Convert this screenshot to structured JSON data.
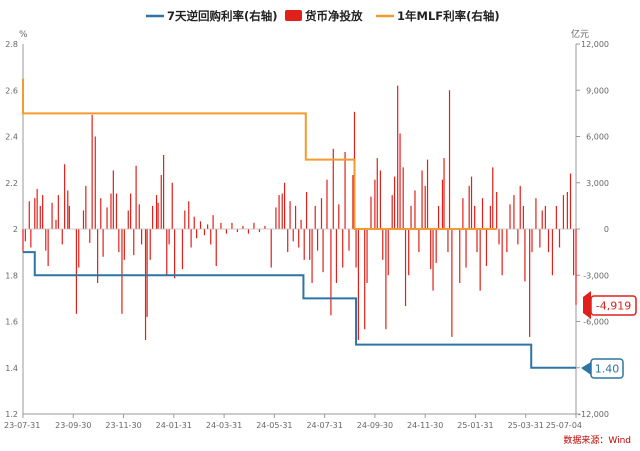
{
  "legend": [
    {
      "label": "7天逆回购利率(右轴)",
      "color": "#2e75a3",
      "shape": "line"
    },
    {
      "label": "货币净投放",
      "color": "#e0201b",
      "shape": "box"
    },
    {
      "label": "1年MLF利率(右轴)",
      "color": "#f29b2f",
      "shape": "line"
    }
  ],
  "source": "数据来源：Wind",
  "callouts": {
    "last_flow": "-4,919",
    "last_repo": "1.40"
  },
  "chart_data": {
    "type": "bar+line",
    "left_axis": {
      "unit": "%",
      "min": 1.2,
      "max": 2.8,
      "ticks": [
        "1.2",
        "1.4",
        "1.6",
        "1.8",
        "2",
        "2.2",
        "2.4",
        "2.6",
        "2.8"
      ]
    },
    "right_axis": {
      "unit": "亿元",
      "min": -12000,
      "max": 12000,
      "ticks": [
        "-12,000",
        "-9,000",
        "-6,000",
        "-3,000",
        "0",
        "3,000",
        "6,000",
        "9,000",
        "12,000"
      ]
    },
    "x_ticks": [
      "23-07-31",
      "23-09-30",
      "23-11-30",
      "24-01-31",
      "24-03-31",
      "24-05-31",
      "24-07-31",
      "24-09-30",
      "24-11-30",
      "25-01-31",
      "25-03-31",
      "25-07-04"
    ],
    "x_range": [
      "2023-07-31",
      "2025-07-04"
    ],
    "repo_rate": {
      "name": "7天逆回购利率(右轴)",
      "color": "#2e75a3",
      "steps": [
        {
          "date": "2023-07-31",
          "value": 1.9
        },
        {
          "date": "2023-08-15",
          "value": 1.8
        },
        {
          "date": "2024-07-22",
          "value": 1.7
        },
        {
          "date": "2024-09-27",
          "value": 1.5
        },
        {
          "date": "2025-05-08",
          "value": 1.4
        },
        {
          "date": "2025-07-04",
          "value": 1.4
        }
      ]
    },
    "mlf_rate": {
      "name": "1年MLF利率(右轴)",
      "color": "#f29b2f",
      "steps": [
        {
          "date": "2023-07-31",
          "value": 2.5
        },
        {
          "date": "2024-07-25",
          "value": 2.3
        },
        {
          "date": "2024-09-25",
          "value": 2.0
        },
        {
          "date": "2025-03-25",
          "value": 2.0
        }
      ]
    },
    "net_injection": {
      "name": "货币净投放",
      "color": "#e0201b",
      "unit": "亿元",
      "bars": [
        {
          "date": "2023-07-31",
          "value": -1500
        },
        {
          "date": "2023-08-03",
          "value": -800
        },
        {
          "date": "2023-08-08",
          "value": 1800
        },
        {
          "date": "2023-08-10",
          "value": -1200
        },
        {
          "date": "2023-08-15",
          "value": 2000
        },
        {
          "date": "2023-08-18",
          "value": 2600
        },
        {
          "date": "2023-08-22",
          "value": 1500
        },
        {
          "date": "2023-08-25",
          "value": 2200
        },
        {
          "date": "2023-08-29",
          "value": -1400
        },
        {
          "date": "2023-09-01",
          "value": -2400
        },
        {
          "date": "2023-09-06",
          "value": 1700
        },
        {
          "date": "2023-09-11",
          "value": 600
        },
        {
          "date": "2023-09-14",
          "value": 2200
        },
        {
          "date": "2023-09-19",
          "value": -1000
        },
        {
          "date": "2023-09-22",
          "value": 4200
        },
        {
          "date": "2023-09-26",
          "value": 2500
        },
        {
          "date": "2023-09-28",
          "value": 1500
        },
        {
          "date": "2023-10-07",
          "value": -5500
        },
        {
          "date": "2023-10-10",
          "value": -2500
        },
        {
          "date": "2023-10-16",
          "value": 1200
        },
        {
          "date": "2023-10-19",
          "value": 2800
        },
        {
          "date": "2023-10-24",
          "value": -900
        },
        {
          "date": "2023-10-27",
          "value": 7400
        },
        {
          "date": "2023-10-31",
          "value": 6000
        },
        {
          "date": "2023-11-03",
          "value": -3500
        },
        {
          "date": "2023-11-07",
          "value": 2000
        },
        {
          "date": "2023-11-10",
          "value": -1800
        },
        {
          "date": "2023-11-15",
          "value": 1400
        },
        {
          "date": "2023-11-20",
          "value": 2300
        },
        {
          "date": "2023-11-23",
          "value": 3800
        },
        {
          "date": "2023-11-27",
          "value": 2300
        },
        {
          "date": "2023-11-30",
          "value": -1500
        },
        {
          "date": "2023-12-04",
          "value": -5500
        },
        {
          "date": "2023-12-07",
          "value": -2000
        },
        {
          "date": "2023-12-12",
          "value": 1200
        },
        {
          "date": "2023-12-15",
          "value": 2300
        },
        {
          "date": "2023-12-19",
          "value": -1700
        },
        {
          "date": "2023-12-22",
          "value": 4100
        },
        {
          "date": "2023-12-26",
          "value": 1600
        },
        {
          "date": "2023-12-29",
          "value": -1000
        },
        {
          "date": "2024-01-03",
          "value": -7200
        },
        {
          "date": "2024-01-05",
          "value": -5700
        },
        {
          "date": "2024-01-09",
          "value": -2000
        },
        {
          "date": "2024-01-12",
          "value": 1500
        },
        {
          "date": "2024-01-17",
          "value": 2200
        },
        {
          "date": "2024-01-19",
          "value": 1700
        },
        {
          "date": "2024-01-23",
          "value": 3500
        },
        {
          "date": "2024-01-26",
          "value": 4800
        },
        {
          "date": "2024-01-30",
          "value": -3000
        },
        {
          "date": "2024-02-02",
          "value": -1000
        },
        {
          "date": "2024-02-06",
          "value": 3000
        },
        {
          "date": "2024-02-09",
          "value": -3200
        },
        {
          "date": "2024-02-19",
          "value": -2600
        },
        {
          "date": "2024-02-22",
          "value": 1200
        },
        {
          "date": "2024-02-27",
          "value": 1800
        },
        {
          "date": "2024-03-01",
          "value": -1200
        },
        {
          "date": "2024-03-05",
          "value": 800
        },
        {
          "date": "2024-03-08",
          "value": -600
        },
        {
          "date": "2024-03-13",
          "value": 500
        },
        {
          "date": "2024-03-18",
          "value": -400
        },
        {
          "date": "2024-03-22",
          "value": 300
        },
        {
          "date": "2024-03-26",
          "value": -1000
        },
        {
          "date": "2024-03-29",
          "value": 900
        },
        {
          "date": "2024-04-02",
          "value": -2400
        },
        {
          "date": "2024-04-08",
          "value": 400
        },
        {
          "date": "2024-04-15",
          "value": -300
        },
        {
          "date": "2024-04-22",
          "value": 400
        },
        {
          "date": "2024-04-29",
          "value": -200
        },
        {
          "date": "2024-05-06",
          "value": 200
        },
        {
          "date": "2024-05-13",
          "value": -300
        },
        {
          "date": "2024-05-20",
          "value": 400
        },
        {
          "date": "2024-05-27",
          "value": -200
        },
        {
          "date": "2024-06-03",
          "value": 200
        },
        {
          "date": "2024-06-11",
          "value": -2500
        },
        {
          "date": "2024-06-17",
          "value": 1400
        },
        {
          "date": "2024-06-21",
          "value": 2200
        },
        {
          "date": "2024-06-25",
          "value": 2300
        },
        {
          "date": "2024-06-28",
          "value": 3000
        },
        {
          "date": "2024-07-02",
          "value": -1500
        },
        {
          "date": "2024-07-05",
          "value": 1800
        },
        {
          "date": "2024-07-09",
          "value": -800
        },
        {
          "date": "2024-07-12",
          "value": 1500
        },
        {
          "date": "2024-07-16",
          "value": -1200
        },
        {
          "date": "2024-07-19",
          "value": 600
        },
        {
          "date": "2024-07-23",
          "value": -2000
        },
        {
          "date": "2024-07-26",
          "value": 2400
        },
        {
          "date": "2024-07-30",
          "value": -2000
        },
        {
          "date": "2024-08-02",
          "value": -3500
        },
        {
          "date": "2024-08-06",
          "value": 1500
        },
        {
          "date": "2024-08-09",
          "value": -1400
        },
        {
          "date": "2024-08-14",
          "value": 2000
        },
        {
          "date": "2024-08-16",
          "value": -2800
        },
        {
          "date": "2024-08-21",
          "value": 3200
        },
        {
          "date": "2024-08-26",
          "value": -5600
        },
        {
          "date": "2024-08-29",
          "value": 5200
        },
        {
          "date": "2024-09-02",
          "value": -3500
        },
        {
          "date": "2024-09-05",
          "value": 1600
        },
        {
          "date": "2024-09-10",
          "value": -2500
        },
        {
          "date": "2024-09-13",
          "value": 5000
        },
        {
          "date": "2024-09-18",
          "value": -1400
        },
        {
          "date": "2024-09-23",
          "value": 3500
        },
        {
          "date": "2024-09-25",
          "value": 7600
        },
        {
          "date": "2024-09-27",
          "value": -2500
        },
        {
          "date": "2024-09-30",
          "value": -7200
        },
        {
          "date": "2024-10-08",
          "value": -6500
        },
        {
          "date": "2024-10-11",
          "value": -3500
        },
        {
          "date": "2024-10-16",
          "value": 2100
        },
        {
          "date": "2024-10-21",
          "value": 3200
        },
        {
          "date": "2024-10-24",
          "value": 4600
        },
        {
          "date": "2024-10-28",
          "value": 3800
        },
        {
          "date": "2024-10-31",
          "value": -2000
        },
        {
          "date": "2024-11-04",
          "value": -6500
        },
        {
          "date": "2024-11-07",
          "value": -3000
        },
        {
          "date": "2024-11-12",
          "value": 2200
        },
        {
          "date": "2024-11-15",
          "value": 3400
        },
        {
          "date": "2024-11-19",
          "value": 9300
        },
        {
          "date": "2024-11-22",
          "value": 6200
        },
        {
          "date": "2024-11-26",
          "value": 4000
        },
        {
          "date": "2024-11-29",
          "value": -5000
        },
        {
          "date": "2024-12-03",
          "value": -3000
        },
        {
          "date": "2024-12-06",
          "value": 1500
        },
        {
          "date": "2024-12-11",
          "value": 2500
        },
        {
          "date": "2024-12-16",
          "value": -1500
        },
        {
          "date": "2024-12-20",
          "value": 3800
        },
        {
          "date": "2024-12-24",
          "value": 2800
        },
        {
          "date": "2024-12-27",
          "value": 4500
        },
        {
          "date": "2024-12-31",
          "value": -2600
        },
        {
          "date": "2025-01-03",
          "value": -4000
        },
        {
          "date": "2025-01-07",
          "value": -2200
        },
        {
          "date": "2025-01-10",
          "value": 1500
        },
        {
          "date": "2025-01-15",
          "value": 3200
        },
        {
          "date": "2025-01-17",
          "value": 4600
        },
        {
          "date": "2025-01-22",
          "value": -1500
        },
        {
          "date": "2025-01-24",
          "value": 9000
        },
        {
          "date": "2025-01-27",
          "value": -7000
        },
        {
          "date": "2025-02-06",
          "value": -3500
        },
        {
          "date": "2025-02-10",
          "value": 2000
        },
        {
          "date": "2025-02-14",
          "value": -2500
        },
        {
          "date": "2025-02-18",
          "value": 2800
        },
        {
          "date": "2025-02-21",
          "value": 3400
        },
        {
          "date": "2025-02-25",
          "value": 1500
        },
        {
          "date": "2025-02-28",
          "value": -1500
        },
        {
          "date": "2025-03-04",
          "value": -4000
        },
        {
          "date": "2025-03-07",
          "value": 2000
        },
        {
          "date": "2025-03-12",
          "value": -2400
        },
        {
          "date": "2025-03-17",
          "value": 1500
        },
        {
          "date": "2025-03-20",
          "value": 4000
        },
        {
          "date": "2025-03-25",
          "value": 2400
        },
        {
          "date": "2025-03-28",
          "value": -1000
        },
        {
          "date": "2025-04-01",
          "value": -3000
        },
        {
          "date": "2025-04-07",
          "value": -1500
        },
        {
          "date": "2025-04-11",
          "value": 1600
        },
        {
          "date": "2025-04-16",
          "value": 2200
        },
        {
          "date": "2025-04-21",
          "value": -1000
        },
        {
          "date": "2025-04-24",
          "value": 2800
        },
        {
          "date": "2025-04-28",
          "value": 1500
        },
        {
          "date": "2025-04-30",
          "value": -3400
        },
        {
          "date": "2025-05-06",
          "value": -7000
        },
        {
          "date": "2025-05-09",
          "value": -1500
        },
        {
          "date": "2025-05-14",
          "value": 2000
        },
        {
          "date": "2025-05-19",
          "value": -1200
        },
        {
          "date": "2025-05-22",
          "value": 1200
        },
        {
          "date": "2025-05-26",
          "value": 1500
        },
        {
          "date": "2025-05-30",
          "value": -1500
        },
        {
          "date": "2025-06-04",
          "value": -3000
        },
        {
          "date": "2025-06-09",
          "value": 1500
        },
        {
          "date": "2025-06-13",
          "value": -1200
        },
        {
          "date": "2025-06-18",
          "value": 2200
        },
        {
          "date": "2025-06-23",
          "value": 2400
        },
        {
          "date": "2025-06-27",
          "value": 3600
        },
        {
          "date": "2025-07-01",
          "value": -3000
        },
        {
          "date": "2025-07-04",
          "value": -4919
        }
      ]
    }
  }
}
